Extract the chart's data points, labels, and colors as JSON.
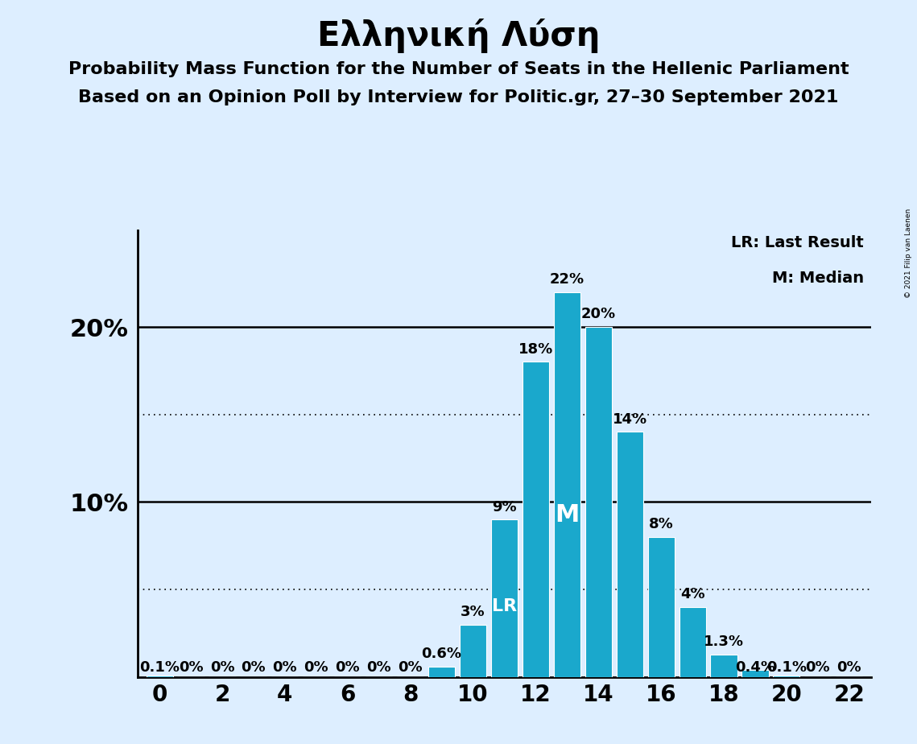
{
  "title": "Ελληνική Λύση",
  "subtitle1": "Probability Mass Function for the Number of Seats in the Hellenic Parliament",
  "subtitle2": "Based on an Opinion Poll by Interview for Politic.gr, 27–30 September 2021",
  "copyright": "© 2021 Filip van Laenen",
  "legend_lr": "LR: Last Result",
  "legend_m": "M: Median",
  "seats": [
    0,
    1,
    2,
    3,
    4,
    5,
    6,
    7,
    8,
    9,
    10,
    11,
    12,
    13,
    14,
    15,
    16,
    17,
    18,
    19,
    20,
    21,
    22
  ],
  "probabilities": [
    0.1,
    0.0,
    0.0,
    0.0,
    0.0,
    0.0,
    0.0,
    0.0,
    0.0,
    0.6,
    3.0,
    9.0,
    18.0,
    22.0,
    20.0,
    14.0,
    8.0,
    4.0,
    1.3,
    0.4,
    0.1,
    0.0,
    0.0
  ],
  "bar_color": "#1aa8cc",
  "background_color": "#ddeeff",
  "bar_labels": [
    "0.1%",
    "0%",
    "0%",
    "0%",
    "0%",
    "0%",
    "0%",
    "0%",
    "0%",
    "0.6%",
    "3%",
    "9%",
    "18%",
    "22%",
    "20%",
    "14%",
    "8%",
    "4%",
    "1.3%",
    "0.4%",
    "0.1%",
    "0%",
    "0%"
  ],
  "lr_seat": 11,
  "median_seat": 13,
  "ylim": [
    0,
    25.5
  ],
  "grid_solid": [
    10,
    20
  ],
  "grid_dotted": [
    5,
    15
  ],
  "title_fontsize": 30,
  "subtitle_fontsize": 16,
  "axis_fontsize": 20,
  "bar_label_fontsize": 13,
  "ytick_fontsize": 22
}
